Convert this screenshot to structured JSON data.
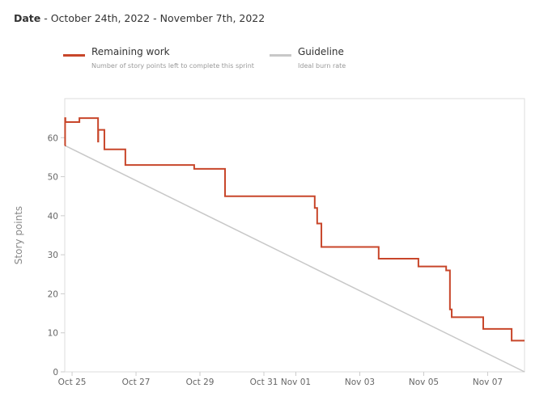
{
  "header": {
    "label": "Date",
    "range": " - October 24th, 2022 - November 7th, 2022"
  },
  "legend": [
    {
      "name": "Remaining work",
      "desc": "Number of story points left to complete this sprint",
      "color": "#c8462a"
    },
    {
      "name": "Guideline",
      "desc": "Ideal burn rate",
      "color": "#c8c8c8"
    }
  ],
  "chart_data": {
    "type": "line",
    "ylabel": "Story points",
    "xlabel": "",
    "ylim": [
      0,
      70
    ],
    "xlim": [
      "2022-10-24T18:30",
      "2022-11-08T03:40"
    ],
    "yticks": [
      0,
      10,
      20,
      30,
      40,
      50,
      60
    ],
    "xticks": [
      {
        "d": "2022-10-25",
        "label": "Oct 25"
      },
      {
        "d": "2022-10-27",
        "label": "Oct 27"
      },
      {
        "d": "2022-10-29",
        "label": "Oct 29"
      },
      {
        "d": "2022-10-31",
        "label": "Oct 31"
      },
      {
        "d": "2022-11-01",
        "label": "Nov 01"
      },
      {
        "d": "2022-11-03",
        "label": "Nov 03"
      },
      {
        "d": "2022-11-05",
        "label": "Nov 05"
      },
      {
        "d": "2022-11-07",
        "label": "Nov 07"
      }
    ],
    "grid": false,
    "series": [
      {
        "name": "Remaining work",
        "step": true,
        "points": [
          [
            "2022-10-24T18:30",
            58
          ],
          [
            "2022-10-24T18:45",
            65
          ],
          [
            "2022-10-24T19:00",
            64
          ],
          [
            "2022-10-25T05:30",
            65
          ],
          [
            "2022-10-25T19:30",
            59
          ],
          [
            "2022-10-25T19:40",
            62
          ],
          [
            "2022-10-26T00:15",
            57
          ],
          [
            "2022-10-26T16:00",
            53
          ],
          [
            "2022-10-28T19:40",
            52
          ],
          [
            "2022-10-29T18:50",
            45
          ],
          [
            "2022-11-01T14:10",
            42
          ],
          [
            "2022-11-01T16:00",
            38
          ],
          [
            "2022-11-01T19:10",
            32
          ],
          [
            "2022-11-03T14:10",
            29
          ],
          [
            "2022-11-04T20:00",
            27
          ],
          [
            "2022-11-05T16:50",
            26
          ],
          [
            "2022-11-05T19:40",
            16
          ],
          [
            "2022-11-05T21:00",
            14
          ],
          [
            "2022-11-06T20:40",
            11
          ],
          [
            "2022-11-07T18:00",
            8
          ],
          [
            "2022-11-08T03:40",
            8
          ]
        ]
      },
      {
        "name": "Guideline",
        "step": false,
        "points": [
          [
            "2022-10-24T18:30",
            58
          ],
          [
            "2022-11-08T03:40",
            0
          ]
        ]
      }
    ]
  }
}
